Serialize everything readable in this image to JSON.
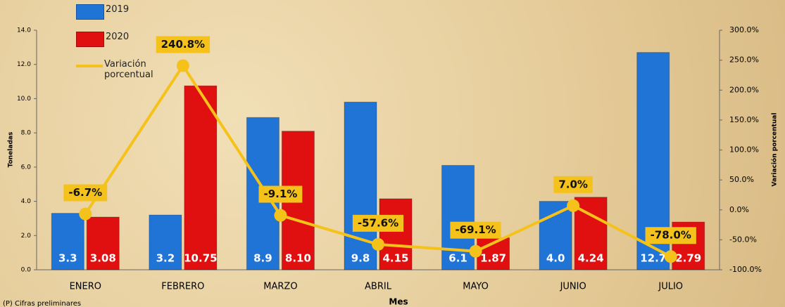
{
  "chart_data": {
    "type": "bar",
    "categories": [
      "ENERO",
      "FEBRERO",
      "MARZO",
      "ABRIL",
      "MAYO",
      "JUNIO",
      "JULIO"
    ],
    "series": [
      {
        "name": "2019",
        "color": "#1f74d6",
        "values": [
          3.3,
          3.2,
          8.9,
          9.8,
          6.1,
          4.0,
          12.7
        ],
        "value_labels": [
          "3.3",
          "3.2",
          "8.9",
          "9.8",
          "6.1",
          "4.0",
          "12.7"
        ]
      },
      {
        "name": "2020",
        "color": "#e01010",
        "values": [
          3.08,
          10.75,
          8.1,
          4.15,
          1.87,
          4.24,
          2.79
        ],
        "value_labels": [
          "3.08",
          "10.75",
          "8.10",
          "4.15",
          "1.87",
          "4.24",
          "2.79"
        ]
      },
      {
        "name": "Variación porcentual",
        "type": "line",
        "axis": "y2",
        "color": "#f5c21b",
        "values": [
          -6.7,
          240.8,
          -9.1,
          -57.6,
          -69.1,
          7.0,
          -78.0
        ],
        "value_labels": [
          "-6.7%",
          "240.8%",
          "-9.1%",
          "-57.6%",
          "-69.1%",
          "7.0%",
          "-78.0%"
        ]
      }
    ],
    "xlabel": "Mes",
    "ylabel": "Toneladas",
    "y2label": "Variación porcentual",
    "ylim": [
      0,
      14
    ],
    "yticks": [
      {
        "value": 0,
        "label": "0.0"
      },
      {
        "value": 2,
        "label": "2.0"
      },
      {
        "value": 4,
        "label": "4.0"
      },
      {
        "value": 6,
        "label": "6.0"
      },
      {
        "value": 8,
        "label": "8.0"
      },
      {
        "value": 10,
        "label": "10.0"
      },
      {
        "value": 12,
        "label": "12.0"
      },
      {
        "value": 14,
        "label": "14.0"
      }
    ],
    "y2lim": [
      -100,
      300
    ],
    "y2ticks": [
      {
        "value": -100,
        "label": "-100.0%"
      },
      {
        "value": -50,
        "label": "-50.0%"
      },
      {
        "value": 0,
        "label": "0.0%"
      },
      {
        "value": 50,
        "label": "50.0%"
      },
      {
        "value": 100,
        "label": "100.0%"
      },
      {
        "value": 150,
        "label": "150.0%"
      },
      {
        "value": 200,
        "label": "200.0%"
      },
      {
        "value": 250,
        "label": "250.0%"
      },
      {
        "value": 300,
        "label": "300.0%"
      }
    ],
    "legend": "top-left",
    "note": "(P) Cifras preliminares"
  }
}
